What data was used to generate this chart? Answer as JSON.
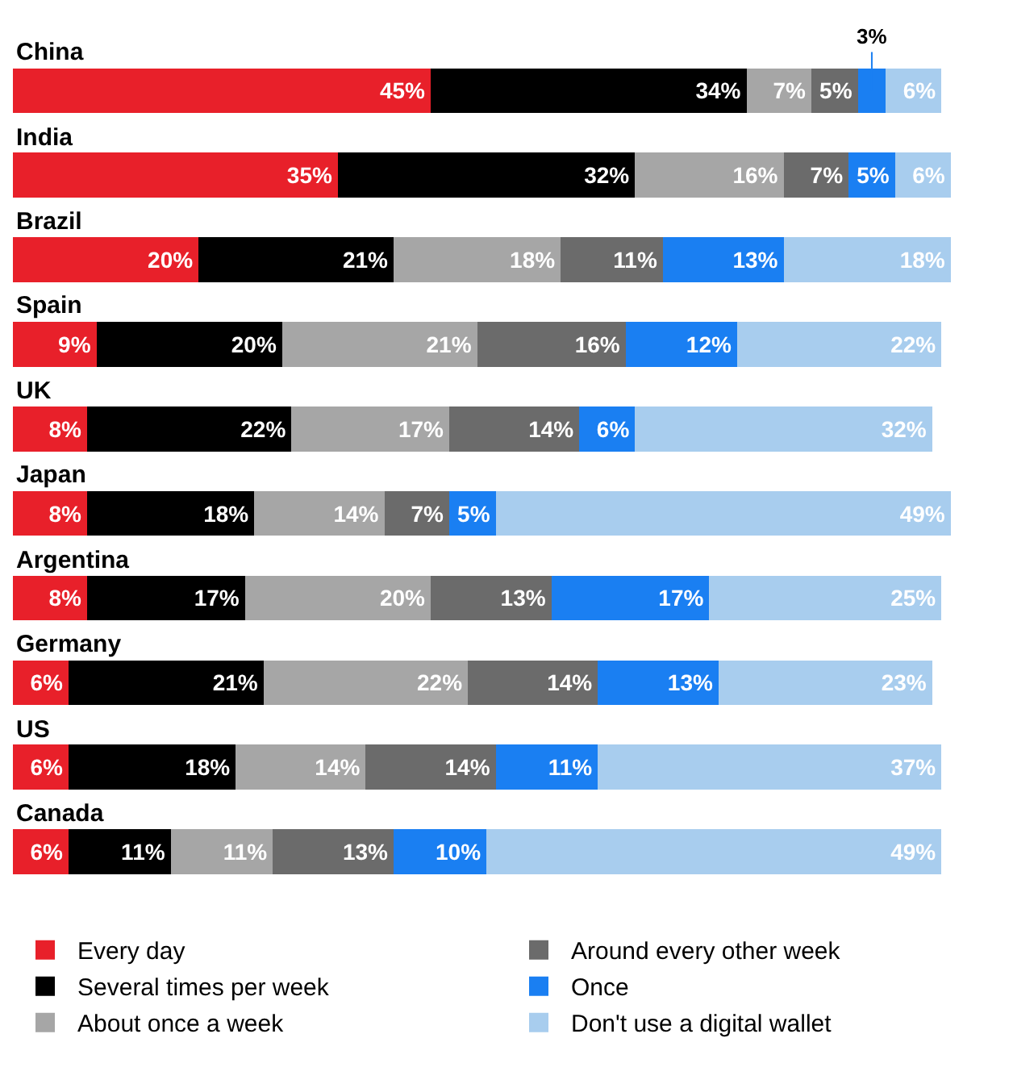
{
  "chart_data": {
    "type": "bar",
    "orientation": "horizontal",
    "stacked": true,
    "legend": "bottom",
    "categories": [
      "China",
      "India",
      "Brazil",
      "Spain",
      "UK",
      "Japan",
      "Argentina",
      "Germany",
      "US",
      "Canada"
    ],
    "series": [
      {
        "name": "Every day",
        "color": "#e8202a",
        "values": [
          45,
          35,
          20,
          9,
          8,
          8,
          8,
          6,
          6,
          6
        ],
        "value_labels": [
          "45%",
          "35%",
          "20%",
          "9%",
          "8%",
          "8%",
          "8%",
          "6%",
          "6%",
          "6%"
        ]
      },
      {
        "name": "Several times per week",
        "color": "#000000",
        "values": [
          34,
          32,
          21,
          20,
          22,
          18,
          17,
          21,
          18,
          11
        ],
        "value_labels": [
          "34%",
          "32%",
          "21%",
          "20%",
          "22%",
          "18%",
          "17%",
          "21%",
          "18%",
          "11%"
        ]
      },
      {
        "name": "About once a week",
        "color": "#a6a6a6",
        "values": [
          7,
          16,
          18,
          21,
          17,
          14,
          20,
          22,
          14,
          11
        ],
        "value_labels": [
          "7%",
          "16%",
          "18%",
          "21%",
          "17%",
          "14%",
          "20%",
          "22%",
          "14%",
          "11%"
        ]
      },
      {
        "name": "Around every other week",
        "color": "#6b6b6b",
        "values": [
          5,
          7,
          11,
          16,
          14,
          7,
          13,
          14,
          14,
          13
        ],
        "value_labels": [
          "5%",
          "7%",
          "11%",
          "16%",
          "14%",
          "7%",
          "13%",
          "14%",
          "14%",
          "13%"
        ]
      },
      {
        "name": "Once",
        "color": "#1a7ff2",
        "values": [
          3,
          5,
          13,
          12,
          6,
          5,
          17,
          13,
          11,
          10
        ],
        "value_labels": [
          "3%",
          "5%",
          "13%",
          "12%",
          "6%",
          "5%",
          "17%",
          "13%",
          "11%",
          "10%"
        ]
      },
      {
        "name": "Don't use a digital wallet",
        "color": "#a8cdee",
        "values": [
          6,
          6,
          18,
          22,
          32,
          49,
          25,
          23,
          37,
          49
        ],
        "value_labels": [
          "6%",
          "6%",
          "18%",
          "22%",
          "32%",
          "49%",
          "25%",
          "23%",
          "37%",
          "49%"
        ]
      }
    ]
  }
}
